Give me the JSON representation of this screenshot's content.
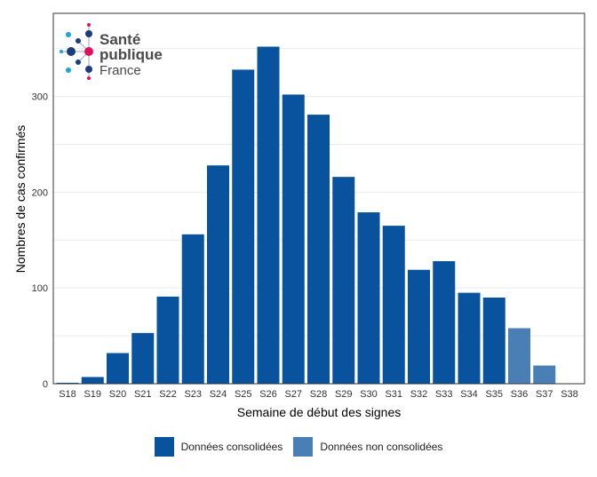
{
  "chart_data": {
    "type": "bar",
    "title": "",
    "xlabel": "Semaine de début des signes",
    "ylabel": "Nombres de cas confirmés",
    "ylim": [
      0,
      370
    ],
    "yticks": [
      0,
      100,
      200,
      300
    ],
    "grid": true,
    "legend_placement": "bottom",
    "categories": [
      "S18",
      "S19",
      "S20",
      "S21",
      "S22",
      "S23",
      "S24",
      "S25",
      "S26",
      "S27",
      "S28",
      "S29",
      "S30",
      "S31",
      "S32",
      "S33",
      "S34",
      "S35",
      "S36",
      "S37",
      "S38"
    ],
    "values": [
      1,
      7,
      32,
      53,
      91,
      156,
      228,
      328,
      352,
      302,
      281,
      216,
      179,
      165,
      119,
      128,
      95,
      90,
      58,
      19,
      0
    ],
    "status": [
      "c",
      "c",
      "c",
      "c",
      "c",
      "c",
      "c",
      "c",
      "c",
      "c",
      "c",
      "c",
      "c",
      "c",
      "c",
      "c",
      "c",
      "c",
      "n",
      "n",
      "n"
    ],
    "series": [
      {
        "name": "Données consolidées",
        "key": "c",
        "color": "#09539E"
      },
      {
        "name": "Données non consolidées",
        "key": "n",
        "color": "#4A7FB5"
      }
    ]
  },
  "logo": {
    "line1": "Santé",
    "line2": "publique",
    "line3": "France"
  }
}
